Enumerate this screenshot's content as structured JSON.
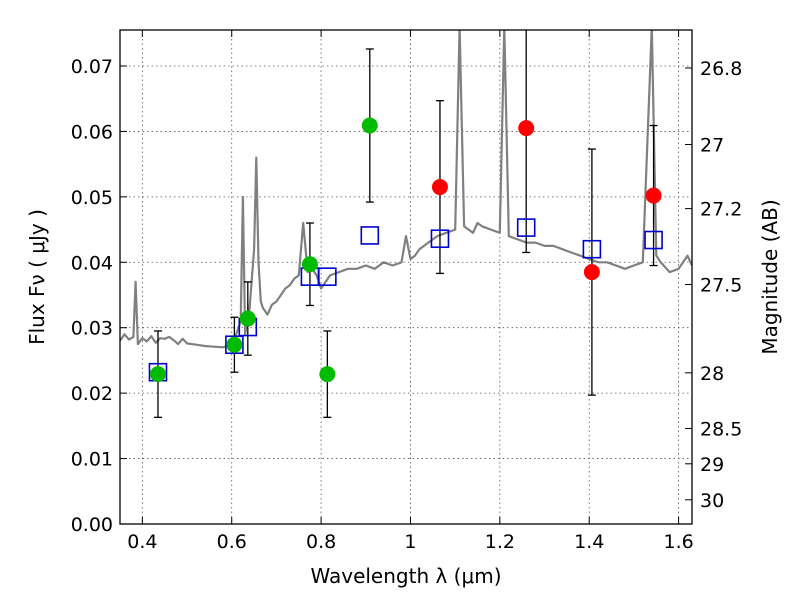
{
  "chart_data": {
    "type": "scatter",
    "xlabel": "Wavelength  λ (μm)",
    "ylabel": "Flux  Fν  ( μJy )",
    "y2label": "Magnitude (AB)",
    "xlim": [
      0.35,
      1.63
    ],
    "ylim": [
      0.0,
      0.0755
    ],
    "grid": true,
    "x_ticks": [
      0.4,
      0.6,
      0.8,
      1.0,
      1.2,
      1.4,
      1.6
    ],
    "x_tick_labels": [
      "0.4",
      "0.6",
      "0.8",
      "1",
      "1.2",
      "1.4",
      "1.6"
    ],
    "y_ticks": [
      0.0,
      0.01,
      0.02,
      0.03,
      0.04,
      0.05,
      0.06,
      0.07
    ],
    "y_tick_labels": [
      "0.00",
      "0.01",
      "0.02",
      "0.03",
      "0.04",
      "0.05",
      "0.06",
      "0.07"
    ],
    "y2_ticks": [
      {
        "label": "26.8",
        "flux": 0.0697
      },
      {
        "label": "27",
        "flux": 0.058
      },
      {
        "label": "27.2",
        "flux": 0.0482
      },
      {
        "label": "27.5",
        "flux": 0.0366
      },
      {
        "label": "28",
        "flux": 0.0231
      },
      {
        "label": "28.5",
        "flux": 0.0146
      },
      {
        "label": "29",
        "flux": 0.0092
      },
      {
        "label": "30",
        "flux": 0.0037
      }
    ],
    "colors": {
      "template": "#808080",
      "green_points": "#00bb00",
      "red_points": "#ff0000",
      "model_squares": "#0000cc",
      "errorbars": "#000000",
      "grid": "#555555"
    },
    "series": [
      {
        "style": "line",
        "color": "#808080",
        "x": [
          0.35,
          0.36,
          0.37,
          0.38,
          0.385,
          0.39,
          0.4,
          0.41,
          0.42,
          0.43,
          0.44,
          0.45,
          0.46,
          0.47,
          0.48,
          0.49,
          0.5,
          0.52,
          0.54,
          0.56,
          0.58,
          0.59,
          0.6,
          0.61,
          0.62,
          0.625,
          0.63,
          0.64,
          0.65,
          0.655,
          0.66,
          0.665,
          0.67,
          0.68,
          0.69,
          0.7,
          0.71,
          0.72,
          0.73,
          0.74,
          0.75,
          0.76,
          0.77,
          0.78,
          0.79,
          0.8,
          0.81,
          0.82,
          0.84,
          0.86,
          0.88,
          0.9,
          0.92,
          0.94,
          0.96,
          0.98,
          0.99,
          1.0,
          1.01,
          1.02,
          1.04,
          1.06,
          1.08,
          1.1,
          1.11,
          1.12,
          1.13,
          1.14,
          1.15,
          1.16,
          1.18,
          1.2,
          1.21,
          1.22,
          1.24,
          1.26,
          1.28,
          1.3,
          1.32,
          1.34,
          1.36,
          1.38,
          1.4,
          1.42,
          1.44,
          1.46,
          1.48,
          1.5,
          1.52,
          1.54,
          1.55,
          1.56,
          1.58,
          1.6,
          1.62,
          1.63
        ],
        "y": [
          0.028,
          0.029,
          0.0282,
          0.0286,
          0.037,
          0.0275,
          0.0284,
          0.0279,
          0.0287,
          0.0277,
          0.0284,
          0.0283,
          0.0286,
          0.0281,
          0.0275,
          0.0283,
          0.0276,
          0.0274,
          0.0272,
          0.0271,
          0.027,
          0.0272,
          0.028,
          0.029,
          0.031,
          0.05,
          0.029,
          0.033,
          0.042,
          0.056,
          0.04,
          0.034,
          0.033,
          0.032,
          0.0335,
          0.034,
          0.035,
          0.036,
          0.0365,
          0.0375,
          0.038,
          0.046,
          0.0385,
          0.039,
          0.038,
          0.036,
          0.037,
          0.038,
          0.0385,
          0.039,
          0.039,
          0.0395,
          0.039,
          0.04,
          0.0395,
          0.04,
          0.044,
          0.0405,
          0.041,
          0.042,
          0.043,
          0.044,
          0.0445,
          0.045,
          0.076,
          0.0455,
          0.045,
          0.0445,
          0.046,
          0.0455,
          0.045,
          0.0445,
          0.076,
          0.044,
          0.0435,
          0.043,
          0.043,
          0.0425,
          0.0425,
          0.042,
          0.0415,
          0.041,
          0.0405,
          0.04,
          0.04,
          0.0395,
          0.039,
          0.0395,
          0.04,
          0.076,
          0.041,
          0.04,
          0.0385,
          0.039,
          0.041,
          0.0395
        ]
      },
      {
        "style": "circle",
        "color": "#00bb00",
        "points": [
          {
            "x": 0.435,
            "y": 0.0229,
            "err": 0.0066
          },
          {
            "x": 0.606,
            "y": 0.0274,
            "err": 0.0042
          },
          {
            "x": 0.636,
            "y": 0.0314,
            "err": 0.0056
          },
          {
            "x": 0.775,
            "y": 0.0397,
            "err": 0.0063
          },
          {
            "x": 0.814,
            "y": 0.0229,
            "err": 0.0066
          },
          {
            "x": 0.909,
            "y": 0.0609,
            "err": 0.0117
          }
        ]
      },
      {
        "style": "circle",
        "color": "#ff0000",
        "points": [
          {
            "x": 1.066,
            "y": 0.0515,
            "err": 0.0132
          },
          {
            "x": 1.259,
            "y": 0.0605,
            "err": 0.019
          },
          {
            "x": 1.406,
            "y": 0.0385,
            "err": 0.0188
          },
          {
            "x": 1.544,
            "y": 0.0502,
            "err": 0.0107
          }
        ]
      },
      {
        "style": "open-square",
        "color": "#0000cc",
        "points": [
          {
            "x": 0.435,
            "y": 0.0232
          },
          {
            "x": 0.606,
            "y": 0.0274
          },
          {
            "x": 0.636,
            "y": 0.0301
          },
          {
            "x": 0.775,
            "y": 0.0378
          },
          {
            "x": 0.814,
            "y": 0.0378
          },
          {
            "x": 0.909,
            "y": 0.0441
          },
          {
            "x": 1.066,
            "y": 0.0436
          },
          {
            "x": 1.259,
            "y": 0.0453
          },
          {
            "x": 1.406,
            "y": 0.042
          },
          {
            "x": 1.544,
            "y": 0.0434
          }
        ]
      }
    ]
  }
}
